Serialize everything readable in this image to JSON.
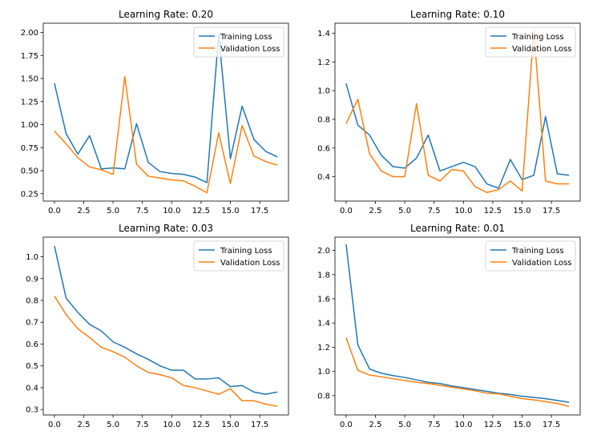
{
  "chart_data": [
    {
      "type": "line",
      "title": "Learning Rate: 0.20",
      "xlabel": "",
      "ylabel": "",
      "x": [
        0,
        1,
        2,
        3,
        4,
        5,
        6,
        7,
        8,
        9,
        10,
        11,
        12,
        13,
        14,
        15,
        16,
        17,
        18,
        19
      ],
      "xlim": [
        -0.95,
        19.95
      ],
      "ylim": [
        0.17,
        2.1
      ],
      "xticks": [
        0.0,
        2.5,
        5.0,
        7.5,
        10.0,
        12.5,
        15.0,
        17.5
      ],
      "xtick_labels": [
        "0.0",
        "2.5",
        "5.0",
        "7.5",
        "10.0",
        "12.5",
        "15.0",
        "17.5"
      ],
      "yticks": [
        0.25,
        0.5,
        0.75,
        1.0,
        1.25,
        1.5,
        1.75,
        2.0
      ],
      "ytick_labels": [
        "0.25",
        "0.50",
        "0.75",
        "1.00",
        "1.25",
        "1.50",
        "1.75",
        "2.00"
      ],
      "grid": false,
      "legend": "top-right",
      "series": [
        {
          "name": "Training Loss",
          "color": "#1f77b4",
          "values": [
            1.45,
            0.9,
            0.68,
            0.88,
            0.52,
            0.53,
            0.52,
            1.01,
            0.59,
            0.49,
            0.47,
            0.46,
            0.43,
            0.37,
            1.98,
            0.63,
            1.2,
            0.84,
            0.71,
            0.65
          ]
        },
        {
          "name": "Validation Loss",
          "color": "#ff7f0e",
          "values": [
            0.93,
            0.79,
            0.64,
            0.54,
            0.51,
            0.46,
            1.52,
            0.57,
            0.44,
            0.42,
            0.4,
            0.39,
            0.33,
            0.26,
            0.91,
            0.36,
            0.99,
            0.66,
            0.6,
            0.56
          ]
        }
      ]
    },
    {
      "type": "line",
      "title": "Learning Rate: 0.10",
      "xlabel": "",
      "ylabel": "",
      "x": [
        0,
        1,
        2,
        3,
        4,
        5,
        6,
        7,
        8,
        9,
        10,
        11,
        12,
        13,
        14,
        15,
        16,
        17,
        18,
        19
      ],
      "xlim": [
        -0.95,
        19.95
      ],
      "ylim": [
        0.23,
        1.47
      ],
      "xticks": [
        0.0,
        2.5,
        5.0,
        7.5,
        10.0,
        12.5,
        15.0,
        17.5
      ],
      "xtick_labels": [
        "0.0",
        "2.5",
        "5.0",
        "7.5",
        "10.0",
        "12.5",
        "15.0",
        "17.5"
      ],
      "yticks": [
        0.4,
        0.6,
        0.8,
        1.0,
        1.2,
        1.4
      ],
      "ytick_labels": [
        "0.4",
        "0.6",
        "0.8",
        "1.0",
        "1.2",
        "1.4"
      ],
      "grid": false,
      "legend": "top-right",
      "series": [
        {
          "name": "Training Loss",
          "color": "#1f77b4",
          "values": [
            1.05,
            0.76,
            0.69,
            0.55,
            0.47,
            0.46,
            0.53,
            0.69,
            0.44,
            0.47,
            0.5,
            0.47,
            0.35,
            0.32,
            0.52,
            0.38,
            0.41,
            0.82,
            0.42,
            0.41
          ]
        },
        {
          "name": "Validation Loss",
          "color": "#ff7f0e",
          "values": [
            0.77,
            0.94,
            0.56,
            0.44,
            0.4,
            0.4,
            0.91,
            0.41,
            0.37,
            0.45,
            0.44,
            0.33,
            0.29,
            0.31,
            0.37,
            0.3,
            1.42,
            0.37,
            0.35,
            0.35
          ]
        }
      ]
    },
    {
      "type": "line",
      "title": "Learning Rate: 0.03",
      "xlabel": "",
      "ylabel": "",
      "x": [
        0,
        1,
        2,
        3,
        4,
        5,
        6,
        7,
        8,
        9,
        10,
        11,
        12,
        13,
        14,
        15,
        16,
        17,
        18,
        19
      ],
      "xlim": [
        -0.95,
        19.95
      ],
      "ylim": [
        0.275,
        1.09
      ],
      "xticks": [
        0.0,
        2.5,
        5.0,
        7.5,
        10.0,
        12.5,
        15.0,
        17.5
      ],
      "xtick_labels": [
        "0.0",
        "2.5",
        "5.0",
        "7.5",
        "10.0",
        "12.5",
        "15.0",
        "17.5"
      ],
      "yticks": [
        0.3,
        0.4,
        0.5,
        0.6,
        0.7,
        0.8,
        0.9,
        1.0
      ],
      "ytick_labels": [
        "0.3",
        "0.4",
        "0.5",
        "0.6",
        "0.7",
        "0.8",
        "0.9",
        "1.0"
      ],
      "grid": false,
      "legend": "top-right",
      "series": [
        {
          "name": "Training Loss",
          "color": "#1f77b4",
          "values": [
            1.05,
            0.81,
            0.745,
            0.69,
            0.66,
            0.61,
            0.585,
            0.555,
            0.53,
            0.5,
            0.48,
            0.48,
            0.44,
            0.44,
            0.445,
            0.405,
            0.41,
            0.38,
            0.37,
            0.38
          ]
        },
        {
          "name": "Validation Loss",
          "color": "#ff7f0e",
          "values": [
            0.82,
            0.735,
            0.67,
            0.63,
            0.585,
            0.565,
            0.54,
            0.5,
            0.47,
            0.46,
            0.445,
            0.41,
            0.4,
            0.385,
            0.37,
            0.395,
            0.34,
            0.34,
            0.325,
            0.315
          ]
        }
      ]
    },
    {
      "type": "line",
      "title": "Learning Rate: 0.01",
      "xlabel": "",
      "ylabel": "",
      "x": [
        0,
        1,
        2,
        3,
        4,
        5,
        6,
        7,
        8,
        9,
        10,
        11,
        12,
        13,
        14,
        15,
        16,
        17,
        18,
        19
      ],
      "xlim": [
        -0.95,
        19.95
      ],
      "ylim": [
        0.64,
        2.11
      ],
      "xticks": [
        0.0,
        2.5,
        5.0,
        7.5,
        10.0,
        12.5,
        15.0,
        17.5
      ],
      "xtick_labels": [
        "0.0",
        "2.5",
        "5.0",
        "7.5",
        "10.0",
        "12.5",
        "15.0",
        "17.5"
      ],
      "yticks": [
        0.8,
        1.0,
        1.2,
        1.4,
        1.6,
        1.8,
        2.0
      ],
      "ytick_labels": [
        "0.8",
        "1.0",
        "1.2",
        "1.4",
        "1.6",
        "1.8",
        "2.0"
      ],
      "grid": false,
      "legend": "top-right",
      "series": [
        {
          "name": "Training Loss",
          "color": "#1f77b4",
          "values": [
            2.05,
            1.22,
            1.02,
            0.985,
            0.965,
            0.95,
            0.93,
            0.91,
            0.9,
            0.88,
            0.865,
            0.85,
            0.835,
            0.82,
            0.81,
            0.795,
            0.785,
            0.775,
            0.76,
            0.745
          ]
        },
        {
          "name": "Validation Loss",
          "color": "#ff7f0e",
          "values": [
            1.28,
            1.01,
            0.97,
            0.955,
            0.94,
            0.925,
            0.91,
            0.9,
            0.885,
            0.87,
            0.855,
            0.84,
            0.82,
            0.815,
            0.795,
            0.775,
            0.765,
            0.75,
            0.735,
            0.71
          ]
        }
      ]
    }
  ]
}
